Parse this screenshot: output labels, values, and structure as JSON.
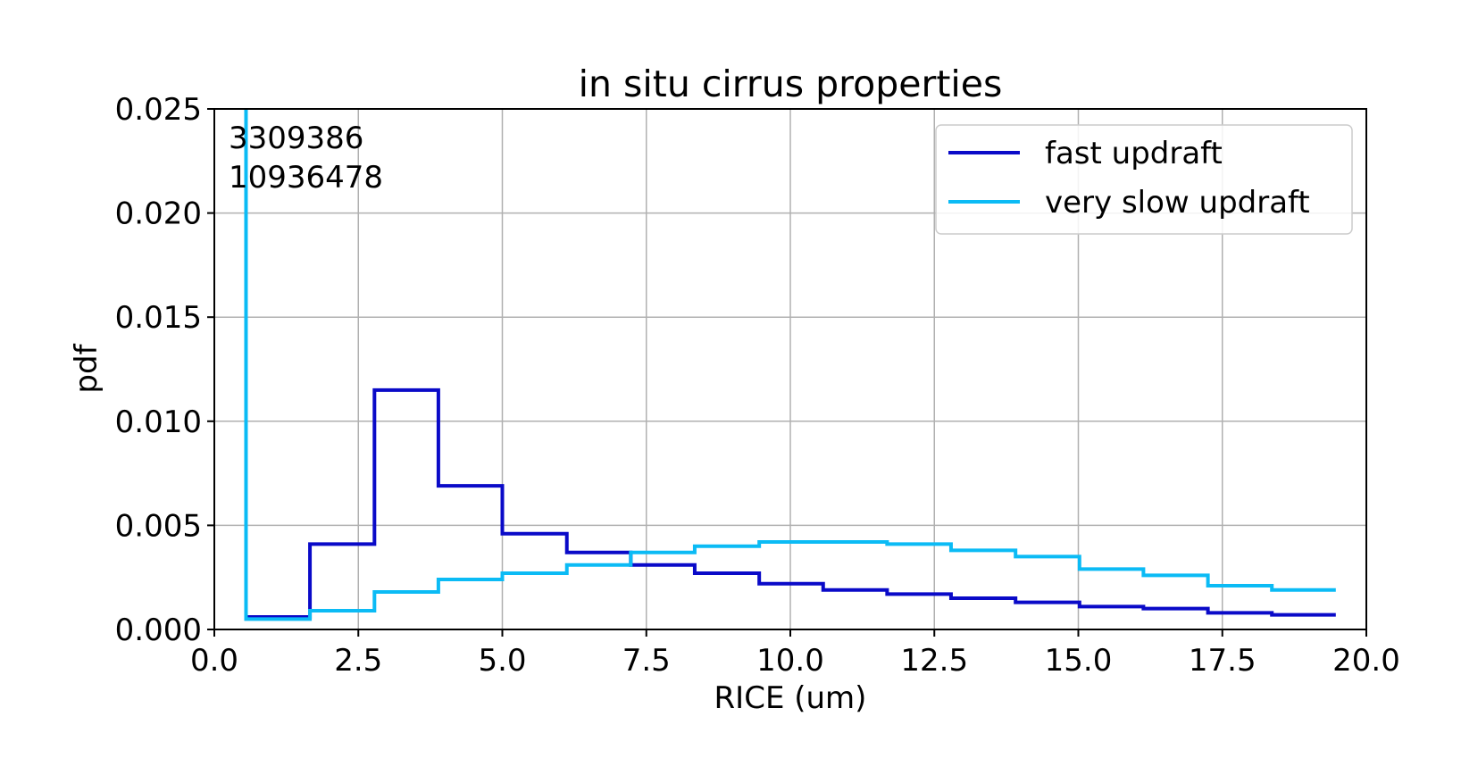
{
  "chart_data": {
    "type": "line",
    "drawstyle": "steps-post",
    "title": "in situ cirrus properties",
    "xlabel": "RICE (um)",
    "ylabel": "pdf",
    "xlim": [
      0.0,
      20.0
    ],
    "ylim": [
      0.0,
      0.025
    ],
    "xticks": [
      0.0,
      2.5,
      5.0,
      7.5,
      10.0,
      12.5,
      15.0,
      17.5,
      20.0
    ],
    "yticks": [
      0.0,
      0.005,
      0.01,
      0.015,
      0.02,
      0.025
    ],
    "xtick_labels": [
      "0.0",
      "2.5",
      "5.0",
      "7.5",
      "10.0",
      "12.5",
      "15.0",
      "17.5",
      "20.0"
    ],
    "ytick_labels": [
      "0.000",
      "0.005",
      "0.010",
      "0.015",
      "0.020",
      "0.025"
    ],
    "grid": true,
    "legend_position": "top-right",
    "bin_edges": [
      0.55,
      1.66,
      2.78,
      3.89,
      5.0,
      6.12,
      7.23,
      8.34,
      9.46,
      10.57,
      11.68,
      12.79,
      13.91,
      15.02,
      16.13,
      17.25,
      18.36,
      19.47
    ],
    "series": [
      {
        "name": "fast updraft",
        "color": "#0a0ac8",
        "values": [
          0.0006,
          0.0041,
          0.0115,
          0.0069,
          0.0046,
          0.0037,
          0.0031,
          0.0027,
          0.0022,
          0.0019,
          0.0017,
          0.0015,
          0.0013,
          0.0011,
          0.001,
          0.0008,
          0.0007
        ]
      },
      {
        "name": "very slow updraft",
        "color": "#0bbbf5",
        "values": [
          0.0005,
          0.0009,
          0.0018,
          0.0024,
          0.0027,
          0.0031,
          0.0037,
          0.004,
          0.0042,
          0.0042,
          0.0041,
          0.0038,
          0.0035,
          0.0029,
          0.0026,
          0.0021,
          0.0019
        ],
        "offscale_first_edge": true
      }
    ],
    "annotations": [
      "3309386",
      "10936478"
    ]
  }
}
